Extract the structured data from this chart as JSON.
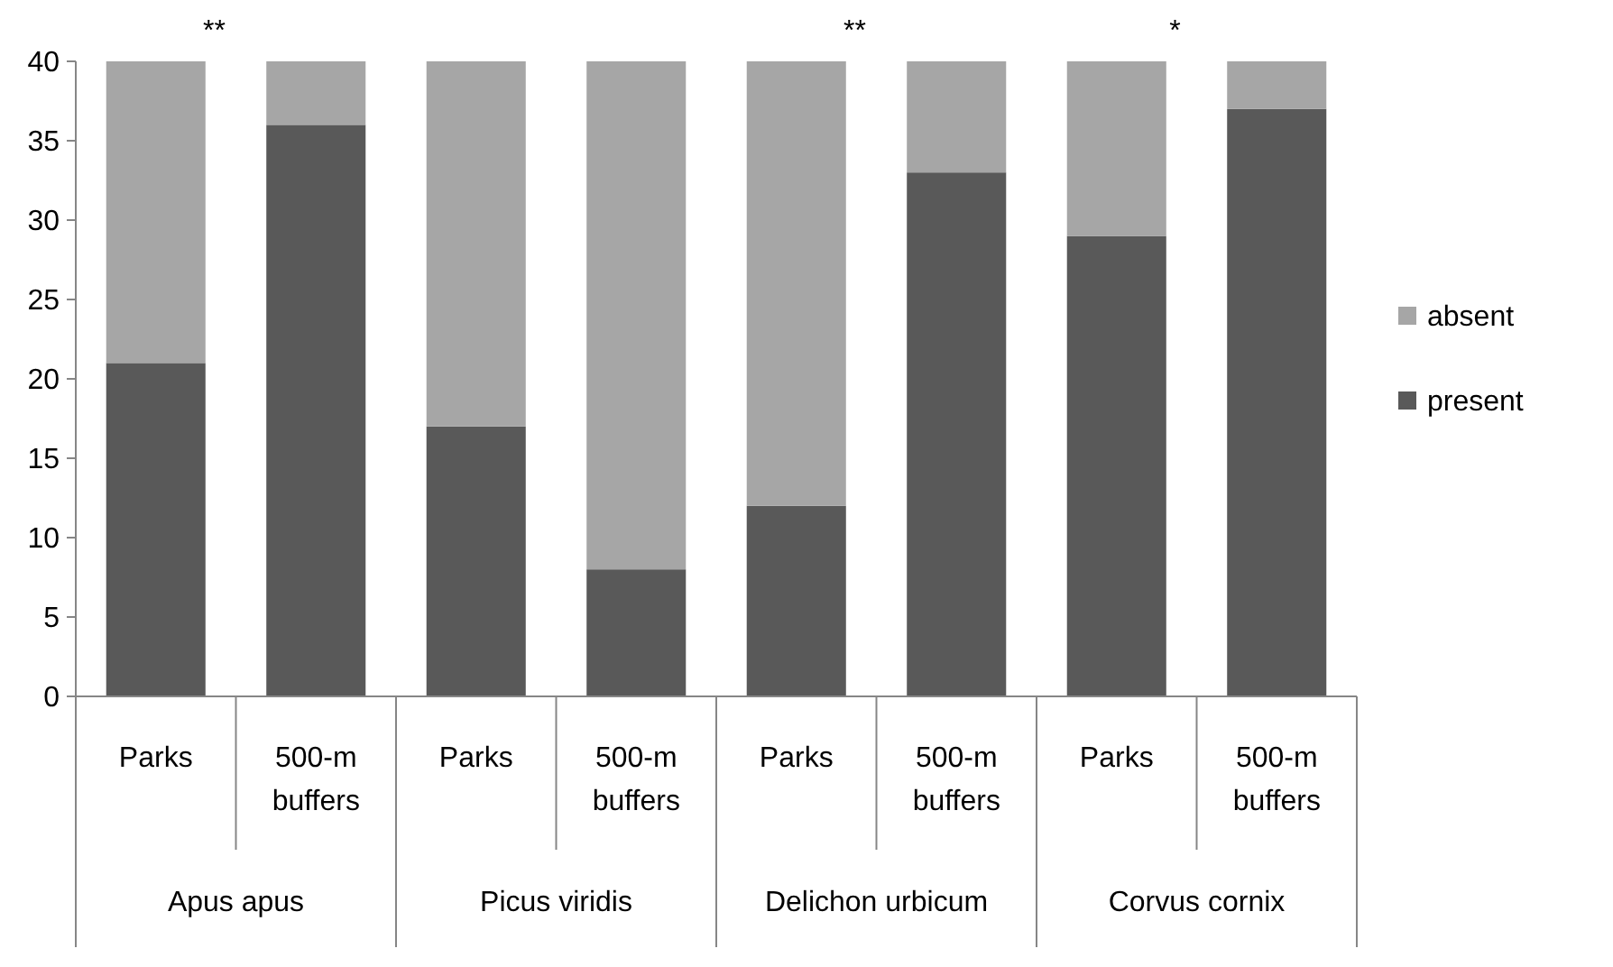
{
  "chart_data": {
    "type": "bar",
    "stacked": true,
    "categories": [
      "Parks",
      "500-m buffers",
      "Parks",
      "500-m buffers",
      "Parks",
      "500-m buffers",
      "Parks",
      "500-m buffers"
    ],
    "series": [
      {
        "name": "present",
        "color": "#595959",
        "values": [
          21,
          36,
          17,
          8,
          12,
          33,
          29,
          37
        ]
      },
      {
        "name": "absent",
        "color": "#a6a6a6",
        "values": [
          19,
          4,
          23,
          32,
          28,
          7,
          11,
          3
        ]
      }
    ],
    "ylim": [
      0,
      40
    ],
    "yticks": [
      0,
      5,
      10,
      15,
      20,
      25,
      30,
      35,
      40
    ],
    "grid": false,
    "legend": "right",
    "annotations": [
      "Apus apus",
      "Picus viridis",
      "Delichon urbicum",
      "Corvus cornix",
      "**",
      "**",
      "*"
    ]
  }
}
